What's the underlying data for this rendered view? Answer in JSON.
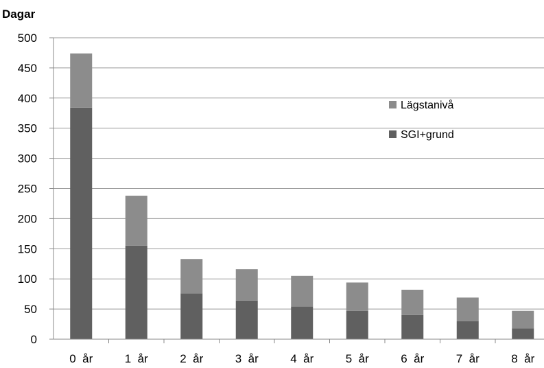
{
  "chart_data": {
    "type": "bar",
    "stacked": true,
    "ylabel": "Dagar",
    "xlabel": "",
    "ylim": [
      0,
      500
    ],
    "yticks": [
      0,
      50,
      100,
      150,
      200,
      250,
      300,
      350,
      400,
      450,
      500
    ],
    "grid": true,
    "legend_position": "right",
    "categories": [
      "0  år",
      "1  år",
      "2  år",
      "3  år",
      "4  år",
      "5  år",
      "6  år",
      "7  år",
      "8  år"
    ],
    "series": [
      {
        "name": "SGI+grund",
        "color": "#606060",
        "values": [
          384,
          155,
          76,
          64,
          54,
          47,
          40,
          30,
          18
        ]
      },
      {
        "name": "Lägstanivå",
        "color": "#8c8c8c",
        "values": [
          90,
          83,
          57,
          52,
          51,
          47,
          42,
          39,
          29
        ]
      }
    ],
    "legend_order": [
      "Lägstanivå",
      "SGI+grund"
    ],
    "grid_color": "#9a9a9a",
    "axis_color": "#888888"
  }
}
